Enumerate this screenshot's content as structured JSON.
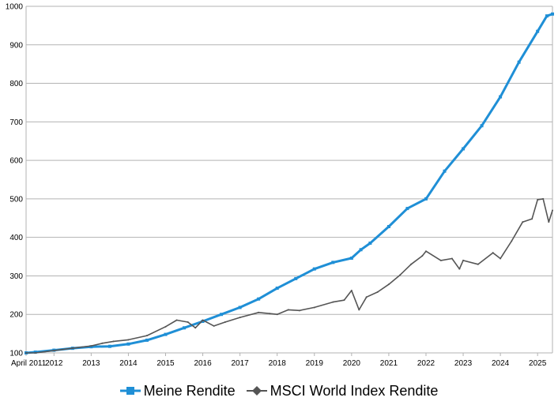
{
  "chart_data": {
    "type": "line",
    "title": "",
    "xlabel": "",
    "ylabel": "",
    "ylim": [
      100,
      1000
    ],
    "yticks": [
      "100",
      "200",
      "300",
      "400",
      "500",
      "600",
      "700",
      "800",
      "900",
      "1000"
    ],
    "x_tick_labels": [
      "April 2011",
      "2012",
      "2013",
      "2014",
      "2015",
      "2016",
      "2017",
      "2018",
      "2019",
      "2020",
      "2021",
      "2022",
      "2023",
      "2024",
      "2025"
    ],
    "x_tick_values": [
      2011.25,
      2012,
      2013,
      2014,
      2015,
      2016,
      2017,
      2018,
      2019,
      2020,
      2021,
      2022,
      2023,
      2024,
      2025
    ],
    "xlim": [
      2011.25,
      2025.4
    ],
    "grid": "horizontal",
    "legend_position": "bottom",
    "series": [
      {
        "name": "Meine Rendite",
        "color": "#1f8fd6",
        "marker": "square",
        "x": [
          2011.25,
          2011.5,
          2012,
          2012.5,
          2013,
          2013.5,
          2014,
          2014.5,
          2015,
          2015.5,
          2016,
          2016.5,
          2017,
          2017.5,
          2018,
          2018.5,
          2019,
          2019.5,
          2020,
          2020.25,
          2020.5,
          2021,
          2021.5,
          2022,
          2022.5,
          2023,
          2023.5,
          2024,
          2024.5,
          2025,
          2025.25,
          2025.4
        ],
        "values": [
          100,
          102,
          107,
          112,
          116,
          117,
          123,
          133,
          148,
          165,
          182,
          200,
          218,
          240,
          268,
          293,
          318,
          335,
          346,
          368,
          385,
          428,
          475,
          500,
          572,
          630,
          690,
          765,
          855,
          935,
          975,
          980
        ]
      },
      {
        "name": "MSCI World Index Rendite",
        "color": "#555555",
        "marker": "diamond",
        "x": [
          2011.25,
          2011.5,
          2012,
          2012.5,
          2013,
          2013.3,
          2013.6,
          2014,
          2014.5,
          2015,
          2015.3,
          2015.6,
          2015.8,
          2016,
          2016.3,
          2016.6,
          2017,
          2017.5,
          2017.8,
          2018,
          2018.3,
          2018.6,
          2019,
          2019.5,
          2019.8,
          2020,
          2020.2,
          2020.4,
          2020.7,
          2021,
          2021.3,
          2021.6,
          2021.9,
          2022,
          2022.4,
          2022.7,
          2022.9,
          2023,
          2023.4,
          2023.8,
          2024,
          2024.3,
          2024.6,
          2024.85,
          2025,
          2025.15,
          2025.3,
          2025.4
        ],
        "values": [
          100,
          100,
          106,
          112,
          118,
          125,
          130,
          134,
          145,
          168,
          185,
          180,
          165,
          185,
          170,
          180,
          192,
          205,
          202,
          200,
          212,
          210,
          218,
          232,
          237,
          262,
          212,
          245,
          258,
          278,
          302,
          330,
          352,
          364,
          340,
          345,
          318,
          340,
          330,
          360,
          345,
          390,
          440,
          448,
          498,
          500,
          440,
          470
        ]
      }
    ]
  },
  "legend": {
    "items": [
      {
        "label": "Meine Rendite"
      },
      {
        "label": "MSCI World Index Rendite"
      }
    ]
  }
}
